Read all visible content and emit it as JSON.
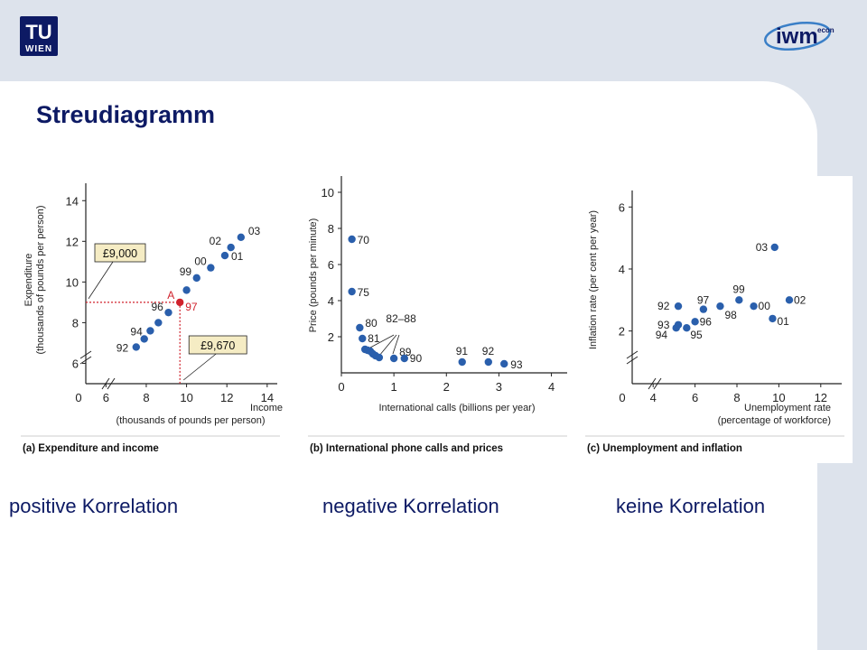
{
  "slide": {
    "title": "Streudiagramm",
    "logo_left": {
      "line1": "TU",
      "line2": "WIEN"
    },
    "logo_right": {
      "text": "iwm",
      "sup": "econ"
    },
    "captions": [
      "positive Korrelation",
      "negative Korrelation",
      "keine Korrelation"
    ],
    "colors": {
      "accent": "#0d1a64",
      "point": "#2a5fac",
      "highlight": "#d0222c",
      "callout": "#f5ecc4"
    }
  },
  "chart_data": [
    {
      "type": "scatter",
      "panel_caption": "(a) Expenditure and income",
      "xlabel": [
        "Income",
        "(thousands of pounds per person)"
      ],
      "ylabel": [
        "Expenditure",
        "(thousands of pounds per person)"
      ],
      "xticks": [
        "0",
        "6",
        "8",
        "10",
        "12",
        "14"
      ],
      "yticks": [
        "6",
        "8",
        "10",
        "12",
        "14"
      ],
      "xlim": [
        5,
        14.5
      ],
      "ylim": [
        5,
        14.5
      ],
      "points": [
        {
          "label": "92",
          "x": 7.5,
          "y": 6.8
        },
        {
          "label": "",
          "x": 7.9,
          "y": 7.2
        },
        {
          "label": "94",
          "x": 8.2,
          "y": 7.6
        },
        {
          "label": "",
          "x": 8.6,
          "y": 8.0
        },
        {
          "label": "96",
          "x": 9.1,
          "y": 8.5
        },
        {
          "label": "97",
          "x": 9.67,
          "y": 9.0
        },
        {
          "label": "",
          "x": 10.0,
          "y": 9.6
        },
        {
          "label": "99",
          "x": 10.5,
          "y": 10.2
        },
        {
          "label": "00",
          "x": 11.2,
          "y": 10.7
        },
        {
          "label": "01",
          "x": 11.9,
          "y": 11.3
        },
        {
          "label": "02",
          "x": 12.2,
          "y": 11.7
        },
        {
          "label": "03",
          "x": 12.7,
          "y": 12.2
        }
      ],
      "highlight": {
        "label": "A",
        "point_label": "97",
        "x": 9.67,
        "y": 9.0
      },
      "callouts": [
        "£9,000",
        "£9,670"
      ]
    },
    {
      "type": "scatter",
      "panel_caption": "(b) International phone calls and prices",
      "xlabel": [
        "International calls (billions per year)"
      ],
      "ylabel": [
        "Price (pounds per minute)"
      ],
      "xticks": [
        "0",
        "1",
        "2",
        "3",
        "4"
      ],
      "yticks": [
        "2",
        "4",
        "6",
        "8",
        "10"
      ],
      "xlim": [
        0,
        4.3
      ],
      "ylim": [
        0,
        10.5
      ],
      "points": [
        {
          "label": "70",
          "x": 0.2,
          "y": 7.4
        },
        {
          "label": "75",
          "x": 0.2,
          "y": 4.5
        },
        {
          "label": "80",
          "x": 0.35,
          "y": 2.5
        },
        {
          "label": "81",
          "x": 0.4,
          "y": 1.9
        },
        {
          "label": "",
          "x": 0.45,
          "y": 1.3
        },
        {
          "label": "",
          "x": 0.5,
          "y": 1.25
        },
        {
          "label": "",
          "x": 0.55,
          "y": 1.2
        },
        {
          "label": "",
          "x": 0.6,
          "y": 1.05
        },
        {
          "label": "",
          "x": 0.65,
          "y": 0.95
        },
        {
          "label": "",
          "x": 0.72,
          "y": 0.85
        },
        {
          "label": "89",
          "x": 1.0,
          "y": 0.8
        },
        {
          "label": "90",
          "x": 1.2,
          "y": 0.8
        },
        {
          "label": "91",
          "x": 2.3,
          "y": 0.6
        },
        {
          "label": "92",
          "x": 2.8,
          "y": 0.6
        },
        {
          "label": "93",
          "x": 3.1,
          "y": 0.5
        }
      ],
      "range_label": "82–88"
    },
    {
      "type": "scatter",
      "panel_caption": "(c) Unemployment and inflation",
      "xlabel": [
        "Unemployment rate",
        "(percentage of workforce)"
      ],
      "ylabel": [
        "Inflation rate (per cent per year)"
      ],
      "xticks": [
        "0",
        "4",
        "6",
        "8",
        "10",
        "12"
      ],
      "yticks": [
        "2",
        "4",
        "6"
      ],
      "xlim": [
        3,
        13
      ],
      "ylim": [
        0.3,
        6.3
      ],
      "points": [
        {
          "label": "92",
          "x": 5.2,
          "y": 2.8
        },
        {
          "label": "93",
          "x": 5.2,
          "y": 2.2
        },
        {
          "label": "94",
          "x": 5.1,
          "y": 2.1
        },
        {
          "label": "95",
          "x": 5.6,
          "y": 2.1
        },
        {
          "label": "96",
          "x": 6.0,
          "y": 2.3
        },
        {
          "label": "97",
          "x": 6.4,
          "y": 2.7
        },
        {
          "label": "98",
          "x": 7.2,
          "y": 2.8
        },
        {
          "label": "99",
          "x": 8.1,
          "y": 3.0
        },
        {
          "label": "00",
          "x": 8.8,
          "y": 2.8
        },
        {
          "label": "01",
          "x": 9.7,
          "y": 2.4
        },
        {
          "label": "02",
          "x": 10.5,
          "y": 3.0
        },
        {
          "label": "03",
          "x": 9.8,
          "y": 4.7
        }
      ]
    }
  ]
}
